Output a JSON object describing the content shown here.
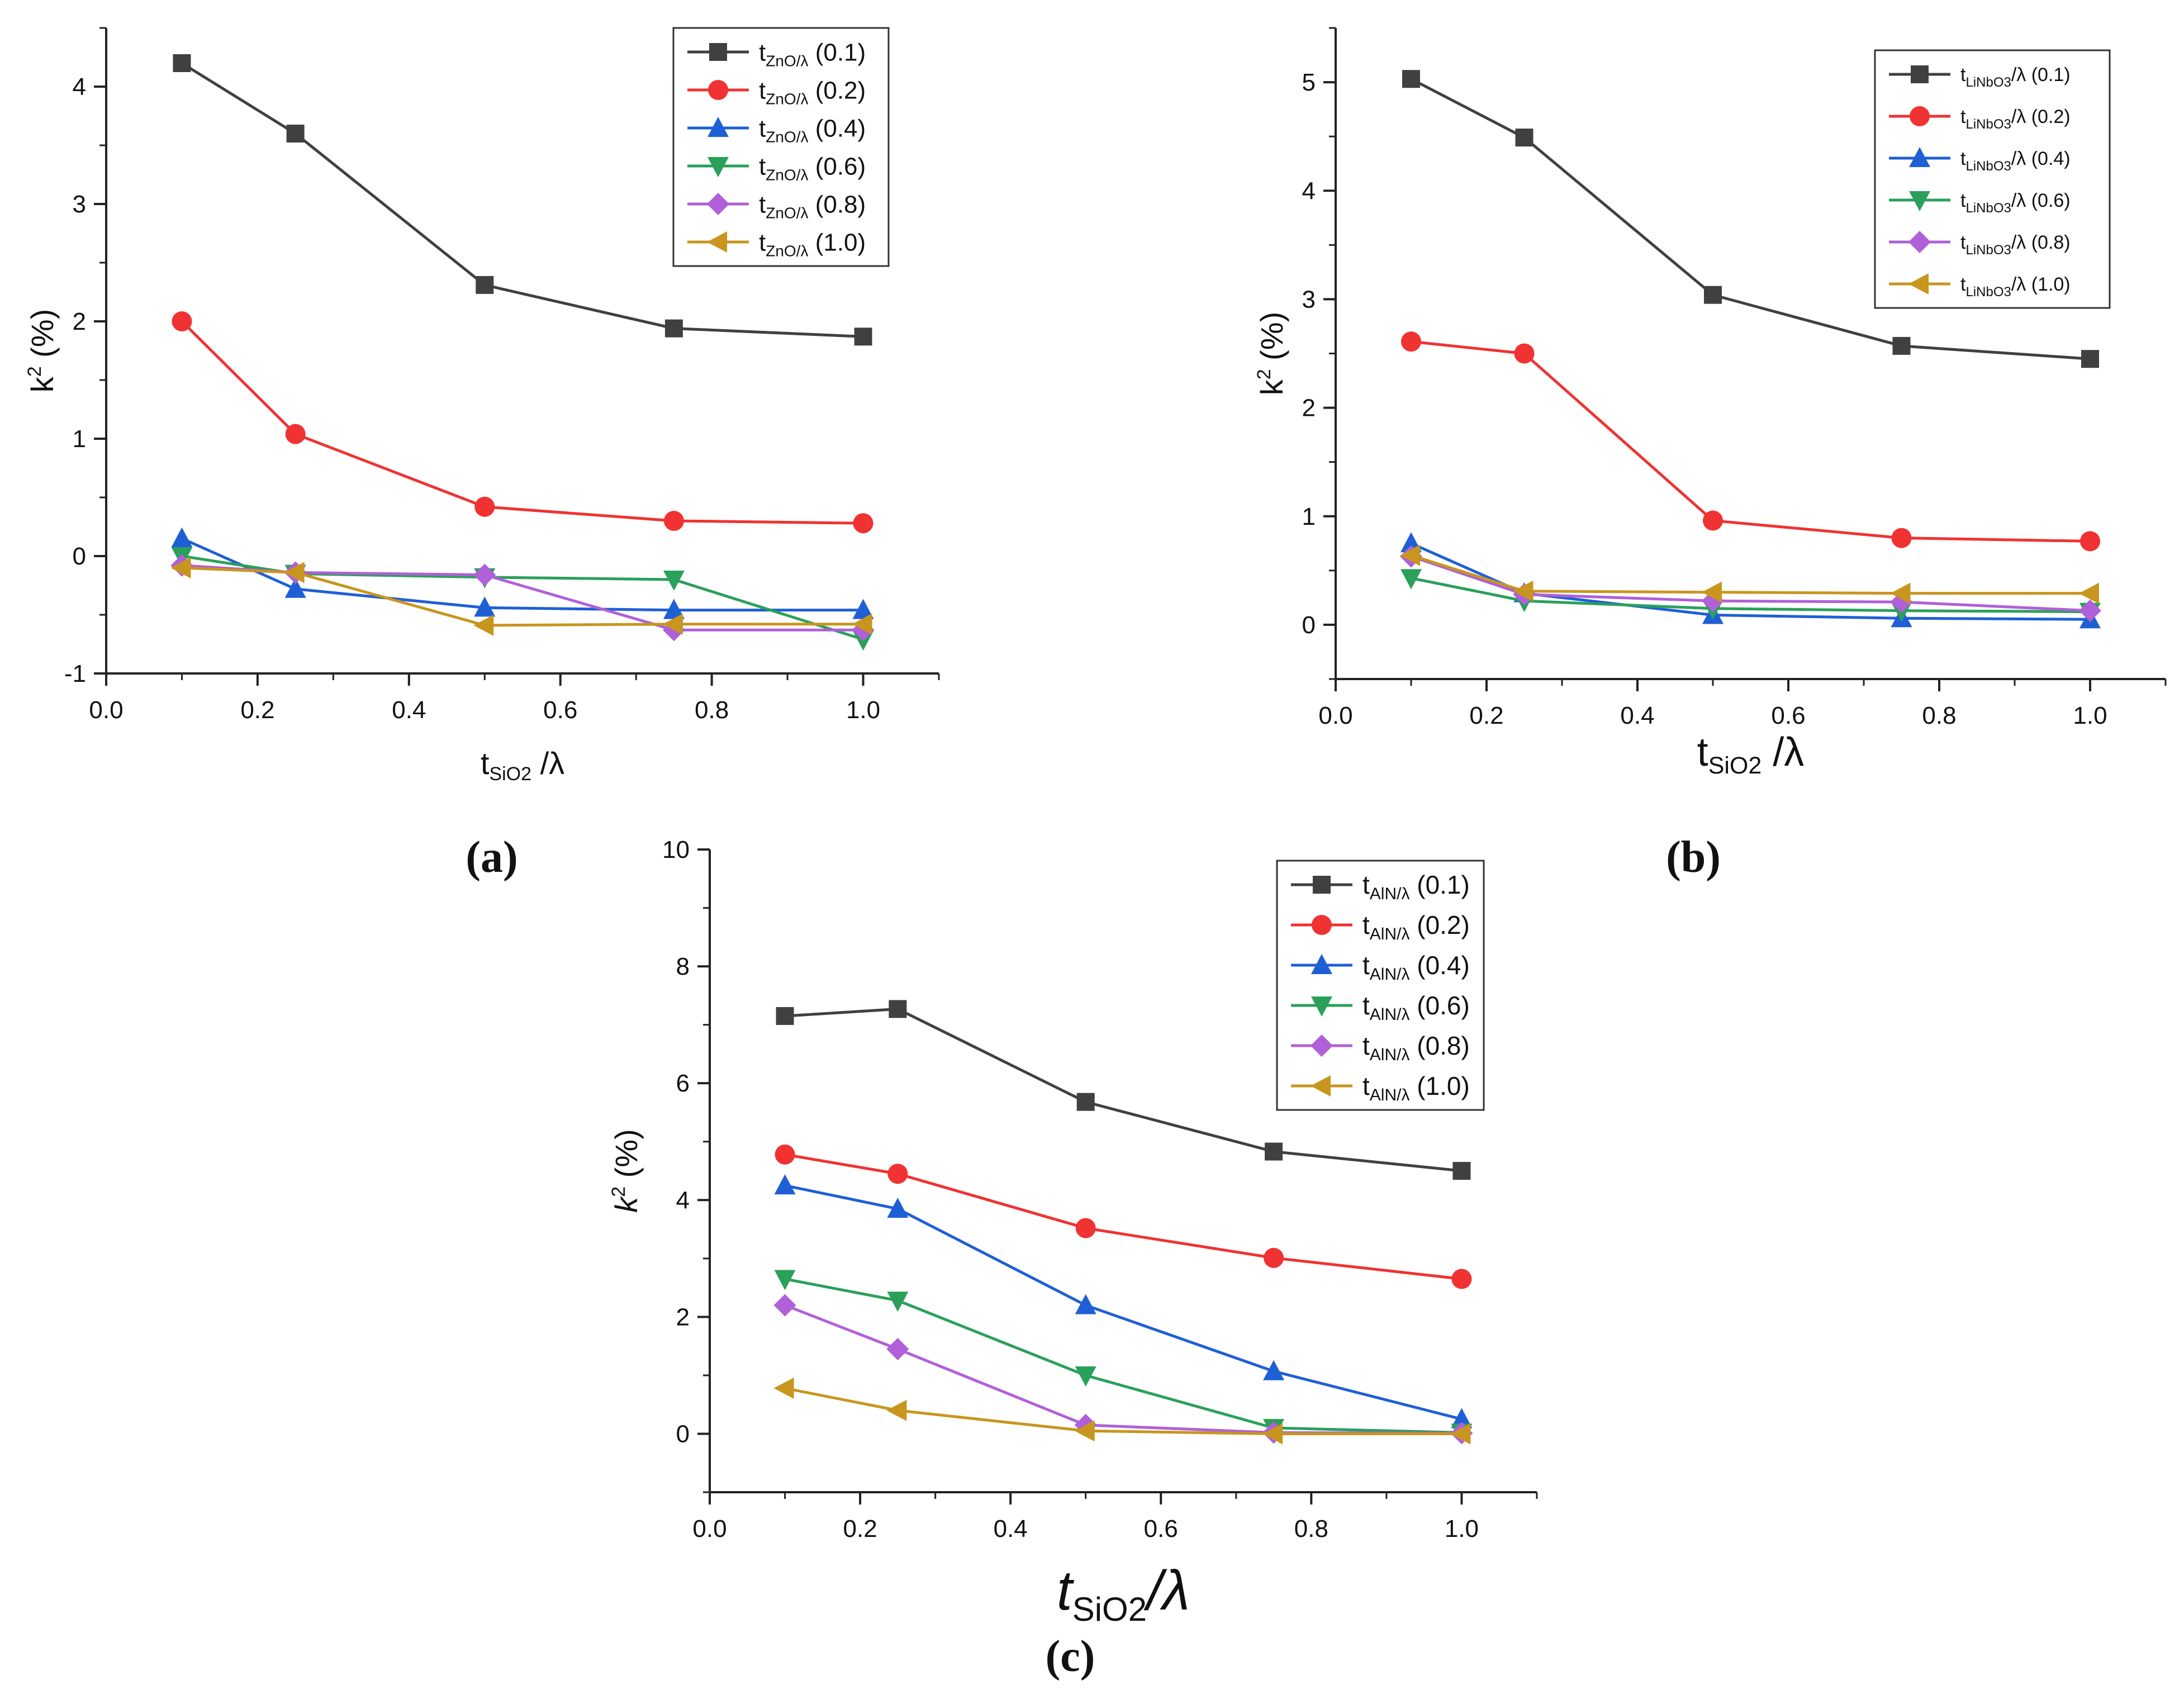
{
  "chart_data": [
    {
      "id": "a",
      "panel_label": "(a)",
      "type": "line",
      "xlabel": {
        "main": "t",
        "sub": "SiO2",
        "rest": " /λ"
      },
      "ylabel": {
        "main": "k",
        "sup": "2",
        "rest": " (%)"
      },
      "xlim": [
        0.0,
        1.1
      ],
      "ylim": [
        -1,
        4.5
      ],
      "xticks": [
        0.0,
        0.2,
        0.4,
        0.6,
        0.8,
        1.0
      ],
      "xtick_labels": [
        "0.0",
        "0.2",
        "0.4",
        "0.6",
        "0.8",
        "1.0"
      ],
      "yticks": [
        -1,
        0,
        1,
        2,
        3,
        4
      ],
      "ytick_labels": [
        "-1",
        "0",
        "1",
        "2",
        "3",
        "4"
      ],
      "x": [
        0.1,
        0.25,
        0.5,
        0.75,
        1.0
      ],
      "legend_position": "top-right",
      "series": [
        {
          "name": "tZnO/λ (0.1)",
          "legend": {
            "main": "t",
            "sub": "ZnO/λ",
            "rest": " (0.1)"
          },
          "color": "#404040",
          "marker": "square",
          "values": [
            4.2,
            3.6,
            2.31,
            1.94,
            1.87
          ]
        },
        {
          "name": "tZnO/λ (0.2)",
          "legend": {
            "main": "t",
            "sub": "ZnO/λ",
            "rest": " (0.2)"
          },
          "color": "#f03232",
          "marker": "circle",
          "values": [
            2.0,
            1.04,
            0.42,
            0.3,
            0.28
          ]
        },
        {
          "name": "tZnO/λ (0.4)",
          "legend": {
            "main": "t",
            "sub": "ZnO/λ",
            "rest": " (0.4)"
          },
          "color": "#1f5fd6",
          "marker": "triangle-up",
          "values": [
            0.15,
            -0.28,
            -0.44,
            -0.46,
            -0.46
          ]
        },
        {
          "name": "tZnO/λ (0.6)",
          "legend": {
            "main": "t",
            "sub": "ZnO/λ",
            "rest": " (0.6)"
          },
          "color": "#2aa05a",
          "marker": "triangle-down",
          "values": [
            0.0,
            -0.15,
            -0.18,
            -0.2,
            -0.71
          ]
        },
        {
          "name": "tZnO/λ (0.8)",
          "legend": {
            "main": "t",
            "sub": "ZnO/λ",
            "rest": " (0.8)"
          },
          "color": "#b060d8",
          "marker": "diamond",
          "values": [
            -0.08,
            -0.14,
            -0.16,
            -0.63,
            -0.63
          ]
        },
        {
          "name": "tZnO/λ (1.0)",
          "legend": {
            "main": "t",
            "sub": "ZnO/λ",
            "rest": " (1.0)"
          },
          "color": "#c8961e",
          "marker": "triangle-left",
          "values": [
            -0.1,
            -0.14,
            -0.59,
            -0.58,
            -0.58
          ]
        }
      ]
    },
    {
      "id": "b",
      "panel_label": "(b)",
      "type": "line",
      "xlabel": {
        "main": "t",
        "sub": "SiO2",
        "rest": " /λ"
      },
      "ylabel": {
        "main": "k",
        "sup": "2",
        "rest": " (%)"
      },
      "xlim": [
        0.0,
        1.1
      ],
      "ylim": [
        -0.5,
        5.5
      ],
      "xticks": [
        0.0,
        0.2,
        0.4,
        0.6,
        0.8,
        1.0
      ],
      "xtick_labels": [
        "0.0",
        "0.2",
        "0.4",
        "0.6",
        "0.8",
        "1.0"
      ],
      "yticks": [
        0,
        1,
        2,
        3,
        4,
        5
      ],
      "ytick_labels": [
        "0",
        "1",
        "2",
        "3",
        "4",
        "5"
      ],
      "x": [
        0.1,
        0.25,
        0.5,
        0.75,
        1.0
      ],
      "legend_position": "top-right",
      "series": [
        {
          "name": "tLiNbO3/λ (0.1)",
          "legend": {
            "main": "t",
            "sub": "LiNbO3",
            "rest": "/λ (0.1)"
          },
          "color": "#404040",
          "marker": "square",
          "values": [
            5.03,
            4.49,
            3.04,
            2.57,
            2.45
          ]
        },
        {
          "name": "tLiNbO3/λ (0.2)",
          "legend": {
            "main": "t",
            "sub": "LiNbO3",
            "rest": "/λ (0.2)"
          },
          "color": "#f03232",
          "marker": "circle",
          "values": [
            2.61,
            2.5,
            0.96,
            0.8,
            0.77
          ]
        },
        {
          "name": "tLiNbO3/λ (0.4)",
          "legend": {
            "main": "t",
            "sub": "LiNbO3",
            "rest": "/λ (0.4)"
          },
          "color": "#1f5fd6",
          "marker": "triangle-up",
          "values": [
            0.75,
            0.29,
            0.09,
            0.06,
            0.05
          ]
        },
        {
          "name": "tLiNbO3/λ (0.6)",
          "legend": {
            "main": "t",
            "sub": "LiNbO3",
            "rest": "/λ (0.6)"
          },
          "color": "#2aa05a",
          "marker": "triangle-down",
          "values": [
            0.43,
            0.22,
            0.15,
            0.13,
            0.12
          ]
        },
        {
          "name": "tLiNbO3/λ (0.8)",
          "legend": {
            "main": "t",
            "sub": "LiNbO3",
            "rest": "/λ (0.8)"
          },
          "color": "#b060d8",
          "marker": "diamond",
          "values": [
            0.63,
            0.28,
            0.22,
            0.21,
            0.13
          ]
        },
        {
          "name": "tLiNbO3/λ (1.0)",
          "legend": {
            "main": "t",
            "sub": "LiNbO3",
            "rest": "/λ (1.0)"
          },
          "color": "#c8961e",
          "marker": "triangle-left",
          "values": [
            0.64,
            0.31,
            0.3,
            0.29,
            0.29
          ]
        }
      ]
    },
    {
      "id": "c",
      "panel_label": "(c)",
      "type": "line",
      "xlabel": {
        "main": "t",
        "sub": "SiO2",
        "rest": "/λ"
      },
      "ylabel": {
        "main": "k",
        "sup": "2",
        "rest": " (%)"
      },
      "xlim": [
        0.0,
        1.1
      ],
      "ylim": [
        -1,
        10
      ],
      "xticks": [
        0.0,
        0.2,
        0.4,
        0.6,
        0.8,
        1.0
      ],
      "xtick_labels": [
        "0.0",
        "0.2",
        "0.4",
        "0.6",
        "0.8",
        "1.0"
      ],
      "yticks": [
        0,
        2,
        4,
        6,
        8,
        10
      ],
      "ytick_labels": [
        "0",
        "2",
        "4",
        "6",
        "8",
        "10"
      ],
      "x": [
        0.1,
        0.25,
        0.5,
        0.75,
        1.0
      ],
      "legend_position": "top-right",
      "series": [
        {
          "name": "tAlN/λ (0.1)",
          "legend": {
            "main": "t",
            "sub": "AlN/λ",
            "rest": " (0.1)"
          },
          "color": "#404040",
          "marker": "square",
          "values": [
            7.15,
            7.27,
            5.68,
            4.83,
            4.5
          ]
        },
        {
          "name": "tAlN/λ (0.2)",
          "legend": {
            "main": "t",
            "sub": "AlN/λ",
            "rest": " (0.2)"
          },
          "color": "#f03232",
          "marker": "circle",
          "values": [
            4.78,
            4.45,
            3.52,
            3.01,
            2.65
          ]
        },
        {
          "name": "tAlN/λ (0.4)",
          "legend": {
            "main": "t",
            "sub": "AlN/λ",
            "rest": " (0.4)"
          },
          "color": "#1f5fd6",
          "marker": "triangle-up",
          "values": [
            4.25,
            3.85,
            2.2,
            1.07,
            0.25
          ]
        },
        {
          "name": "tAlN/λ (0.6)",
          "legend": {
            "main": "t",
            "sub": "AlN/λ",
            "rest": " (0.6)"
          },
          "color": "#2aa05a",
          "marker": "triangle-down",
          "values": [
            2.65,
            2.28,
            1.0,
            0.1,
            0.02
          ]
        },
        {
          "name": "tAlN/λ (0.8)",
          "legend": {
            "main": "t",
            "sub": "AlN/λ",
            "rest": " (0.8)"
          },
          "color": "#b060d8",
          "marker": "diamond",
          "values": [
            2.2,
            1.45,
            0.15,
            0.02,
            0.01
          ]
        },
        {
          "name": "tAlN/λ (1.0)",
          "legend": {
            "main": "t",
            "sub": "AlN/λ",
            "rest": " (1.0)"
          },
          "color": "#c8961e",
          "marker": "triangle-left",
          "values": [
            0.78,
            0.4,
            0.05,
            0.0,
            0.0
          ]
        }
      ]
    }
  ]
}
